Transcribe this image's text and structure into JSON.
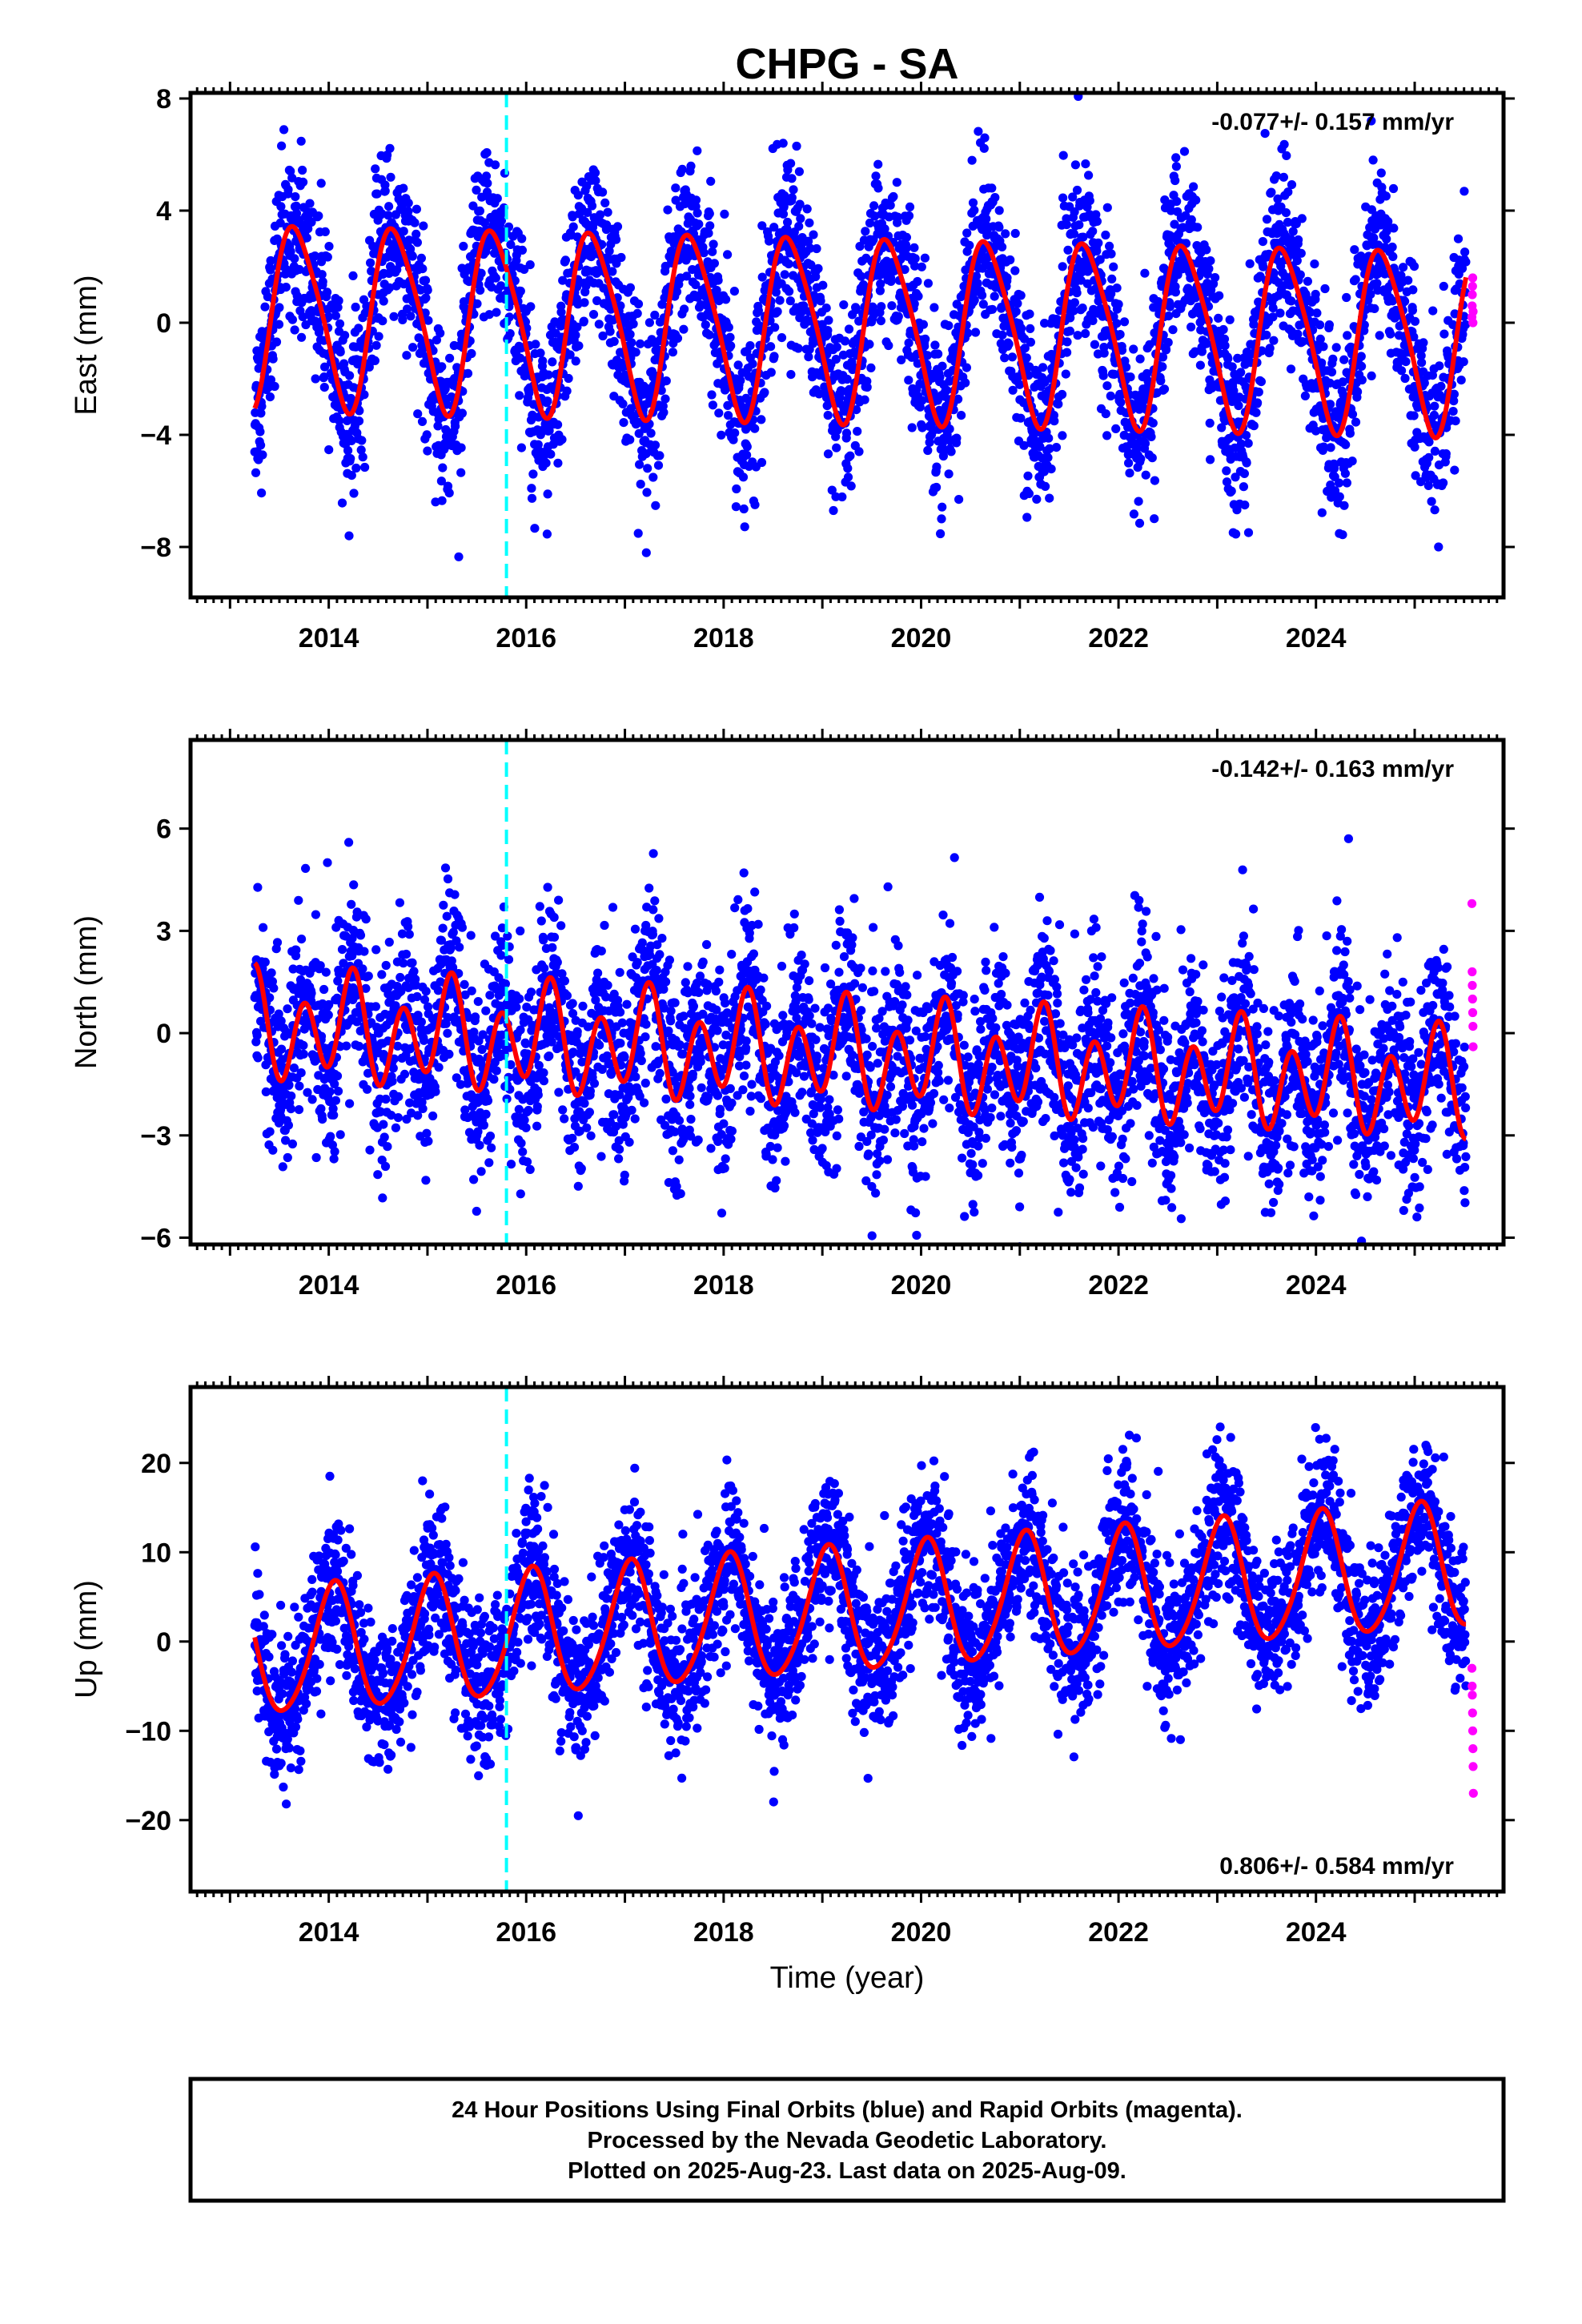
{
  "title": "CHPG - SA",
  "xlabel": "Time (year)",
  "footer": [
    "24 Hour Positions Using Final Orbits (blue) and Rapid Orbits (magenta).",
    "Processed by the Nevada Geodetic Laboratory.",
    "Plotted on 2025-Aug-23. Last data on 2025-Aug-09."
  ],
  "colors": {
    "final_orbits": "#0000ff",
    "rapid_orbits": "#ff00ff",
    "model_fit": "#ff0000",
    "event_marker": "#00ffff"
  },
  "chart_data": [
    {
      "type": "scatter",
      "name": "east",
      "ylabel": "East (mm)",
      "rate_label": "-0.077+/- 0.157 mm/yr",
      "rate_position": "top-right",
      "xlim": [
        2012.6,
        2025.9
      ],
      "ylim": [
        -9.8,
        8.2
      ],
      "yticks": [
        8,
        4,
        0,
        -4,
        -8
      ],
      "xticks": [
        2014,
        2016,
        2018,
        2020,
        2022,
        2024
      ],
      "event_marker_x": 2015.8,
      "data_start": 2013.25,
      "data_end": 2025.52,
      "fit": {
        "offset": 0.3,
        "trend": -0.077,
        "annual_amp": 3.2,
        "annual_phase": 3.6,
        "semiannual_amp": 0.5,
        "semiannual_phase": 1.3
      },
      "scatter_sigma": 1.5,
      "rapid_values": [
        0.2,
        0.6,
        1.0,
        1.3,
        1.6,
        0.0,
        0.4
      ]
    },
    {
      "type": "scatter",
      "name": "north",
      "ylabel": "North (mm)",
      "rate_label": "-0.142+/- 0.163 mm/yr",
      "rate_position": "top-right",
      "xlim": [
        2012.6,
        2025.9
      ],
      "ylim": [
        -6.2,
        8.6
      ],
      "yticks": [
        6,
        3,
        0,
        -3,
        -6
      ],
      "xticks": [
        2014,
        2016,
        2018,
        2020,
        2022,
        2024
      ],
      "event_marker_x": 2015.8,
      "data_start": 2013.25,
      "data_end": 2025.52,
      "fit": {
        "offset": 0.2,
        "trend": -0.142,
        "annual_amp": 0.6,
        "annual_phase": 0.4,
        "semiannual_amp": 1.3,
        "semiannual_phase": 4.7
      },
      "scatter_sigma": 1.4,
      "rapid_values": [
        3.8,
        1.8,
        1.4,
        1.0,
        0.6,
        0.2,
        -0.4
      ]
    },
    {
      "type": "scatter",
      "name": "up",
      "ylabel": "Up (mm)",
      "rate_label": "0.806+/- 0.584 mm/yr",
      "rate_position": "bottom-right",
      "xlim": [
        2012.6,
        2025.9
      ],
      "ylim": [
        -28,
        28.5
      ],
      "yticks": [
        20,
        10,
        0,
        -10,
        -20
      ],
      "xticks": [
        2014,
        2016,
        2018,
        2020,
        2022,
        2024
      ],
      "event_marker_x": 2015.8,
      "data_start": 2013.25,
      "data_end": 2025.52,
      "fit": {
        "offset": -1.5,
        "trend": 0.806,
        "annual_amp": 7.0,
        "annual_phase": 1.25,
        "semiannual_amp": 0.8,
        "semiannual_phase": 0.3
      },
      "scatter_sigma": 4.2,
      "rapid_values": [
        -3,
        -5,
        -6,
        -8,
        -10,
        -12,
        -14,
        -17
      ]
    }
  ]
}
